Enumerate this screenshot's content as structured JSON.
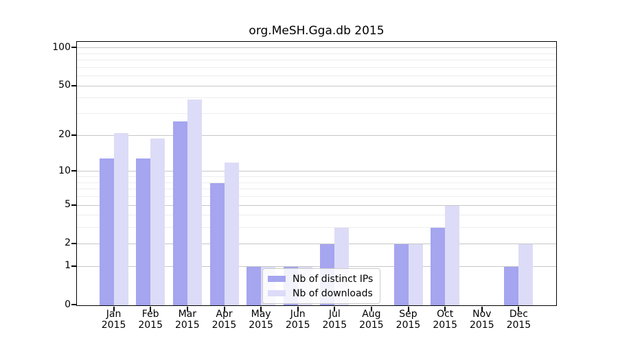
{
  "chart_data": {
    "type": "bar",
    "title": "org.MeSH.Gga.db 2015",
    "year": "2015",
    "categories": [
      "Jan",
      "Feb",
      "Mar",
      "Apr",
      "May",
      "Jun",
      "Jul",
      "Aug",
      "Sep",
      "Oct",
      "Nov",
      "Dec"
    ],
    "series": [
      {
        "name": "Nb of distinct IPs",
        "key": "distinct-ips",
        "color": "#a5a5f0",
        "values": [
          13,
          13,
          26,
          8,
          1,
          1,
          2,
          0,
          2,
          3,
          0,
          1
        ]
      },
      {
        "name": "Nb of downloads",
        "key": "downloads",
        "color": "#dcdcf8",
        "values": [
          21,
          19,
          39,
          12,
          1,
          1,
          3,
          0,
          2,
          5,
          0,
          2
        ]
      }
    ],
    "yscale": "log1p",
    "yticks": [
      0,
      1,
      2,
      5,
      10,
      20,
      50,
      100
    ],
    "minor_gridlines": [
      3,
      4,
      6,
      7,
      8,
      9,
      30,
      40,
      60,
      70,
      80,
      90
    ],
    "ylim": [
      0,
      113
    ],
    "grid": true,
    "legend_position": "bottom-center",
    "colors": {
      "axis": "#000000",
      "grid_major": "#c6c6c6",
      "grid_minor": "#ededed",
      "legend_border": "#cccccc"
    }
  }
}
